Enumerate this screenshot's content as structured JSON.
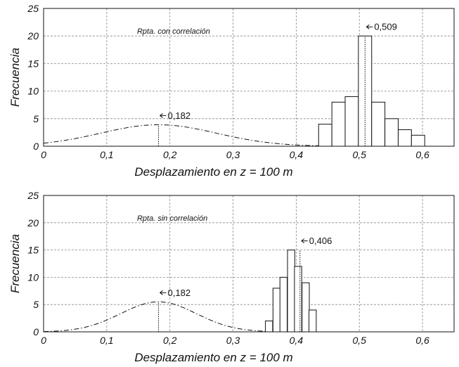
{
  "chart_data": [
    {
      "type": "bar",
      "title": "Rpta. con correlación",
      "xlabel": "Desplazamiento en z = 100 m",
      "ylabel": "Frecuencia",
      "xlim": [
        0,
        0.65
      ],
      "ylim": [
        0,
        25
      ],
      "x_ticks": [
        "0",
        "0,1",
        "0,2",
        "0,3",
        "0,4",
        "0,5",
        "0,6"
      ],
      "y_ticks": [
        "0",
        "5",
        "10",
        "15",
        "20",
        "25"
      ],
      "grid": true,
      "bin_width": 0.021,
      "bins": [
        {
          "x": 0.446,
          "value": 4
        },
        {
          "x": 0.467,
          "value": 8
        },
        {
          "x": 0.488,
          "value": 9
        },
        {
          "x": 0.509,
          "value": 20
        },
        {
          "x": 0.53,
          "value": 8
        },
        {
          "x": 0.551,
          "value": 5
        },
        {
          "x": 0.572,
          "value": 3
        },
        {
          "x": 0.593,
          "value": 2
        }
      ],
      "curve": {
        "type": "normal",
        "mean": 0.182,
        "sd": 0.092,
        "peak": 3.9
      },
      "annotations": [
        {
          "x": 0.509,
          "label": "0,509",
          "marker_height": 20
        },
        {
          "x": 0.182,
          "label": "0,182",
          "marker_height": 3.9
        }
      ]
    },
    {
      "type": "bar",
      "title": "Rpta. sin correlación",
      "xlabel": "Desplazamiento en z = 100 m",
      "ylabel": "Frecuencia",
      "xlim": [
        0,
        0.65
      ],
      "ylim": [
        0,
        25
      ],
      "x_ticks": [
        "0",
        "0,1",
        "0,2",
        "0,3",
        "0,4",
        "0,5",
        "0,6"
      ],
      "y_ticks": [
        "0",
        "5",
        "10",
        "15",
        "20",
        "25"
      ],
      "grid": true,
      "bin_width": 0.0115,
      "bins": [
        {
          "x": 0.357,
          "value": 2
        },
        {
          "x": 0.369,
          "value": 8
        },
        {
          "x": 0.38,
          "value": 10
        },
        {
          "x": 0.392,
          "value": 15
        },
        {
          "x": 0.403,
          "value": 12
        },
        {
          "x": 0.415,
          "value": 9
        },
        {
          "x": 0.426,
          "value": 4
        }
      ],
      "curve": {
        "type": "normal",
        "mean": 0.182,
        "sd": 0.06,
        "peak": 5.5
      },
      "annotations": [
        {
          "x": 0.406,
          "label": "0,406",
          "marker_height": 15
        },
        {
          "x": 0.182,
          "label": "0,182",
          "marker_height": 5.5
        }
      ]
    }
  ]
}
